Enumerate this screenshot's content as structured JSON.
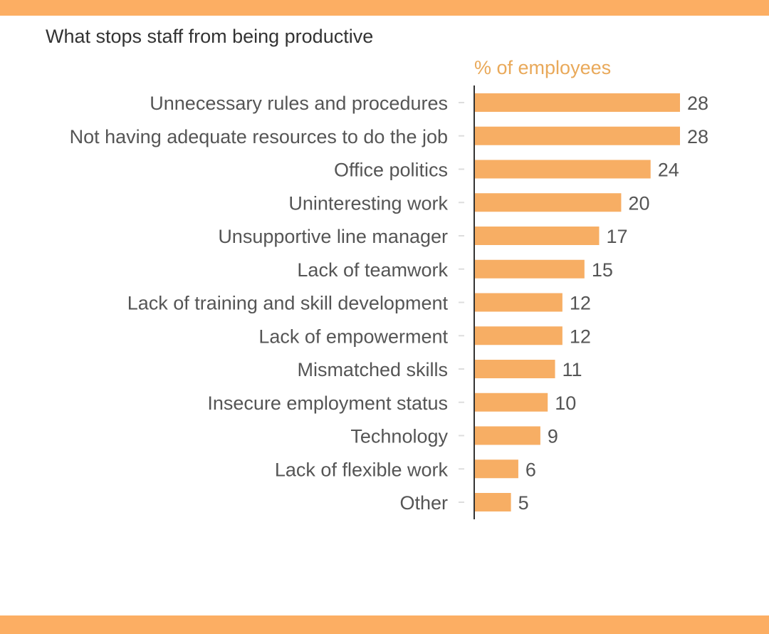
{
  "colors": {
    "accent": "#f7ae64",
    "band": "#fcae63",
    "unit_text": "#e9a95a",
    "label_text": "#555555",
    "value_text": "#555555",
    "title_text": "#333333",
    "axis": "#333333",
    "tick": "#dddddd"
  },
  "chart_data": {
    "type": "bar",
    "orientation": "horizontal",
    "title": "What stops staff from being productive",
    "unit_label": "% of employees",
    "categories": [
      "Unnecessary rules and procedures",
      "Not having adequate resources to do the job",
      "Office politics",
      "Uninteresting work",
      "Unsupportive line manager",
      "Lack of teamwork",
      "Lack of training and skill development",
      "Lack of empowerment",
      "Mismatched skills",
      "Insecure employment status",
      "Technology",
      "Lack of flexible work",
      "Other"
    ],
    "values": [
      28,
      28,
      24,
      20,
      17,
      15,
      12,
      12,
      11,
      10,
      9,
      6,
      5
    ],
    "data_labels": [
      "28",
      "28",
      "24",
      "20",
      "17",
      "15",
      "12",
      "12",
      "11",
      "10",
      "9",
      "6",
      "5"
    ],
    "xlim": [
      0,
      28
    ],
    "grid": false,
    "legend": "none"
  }
}
